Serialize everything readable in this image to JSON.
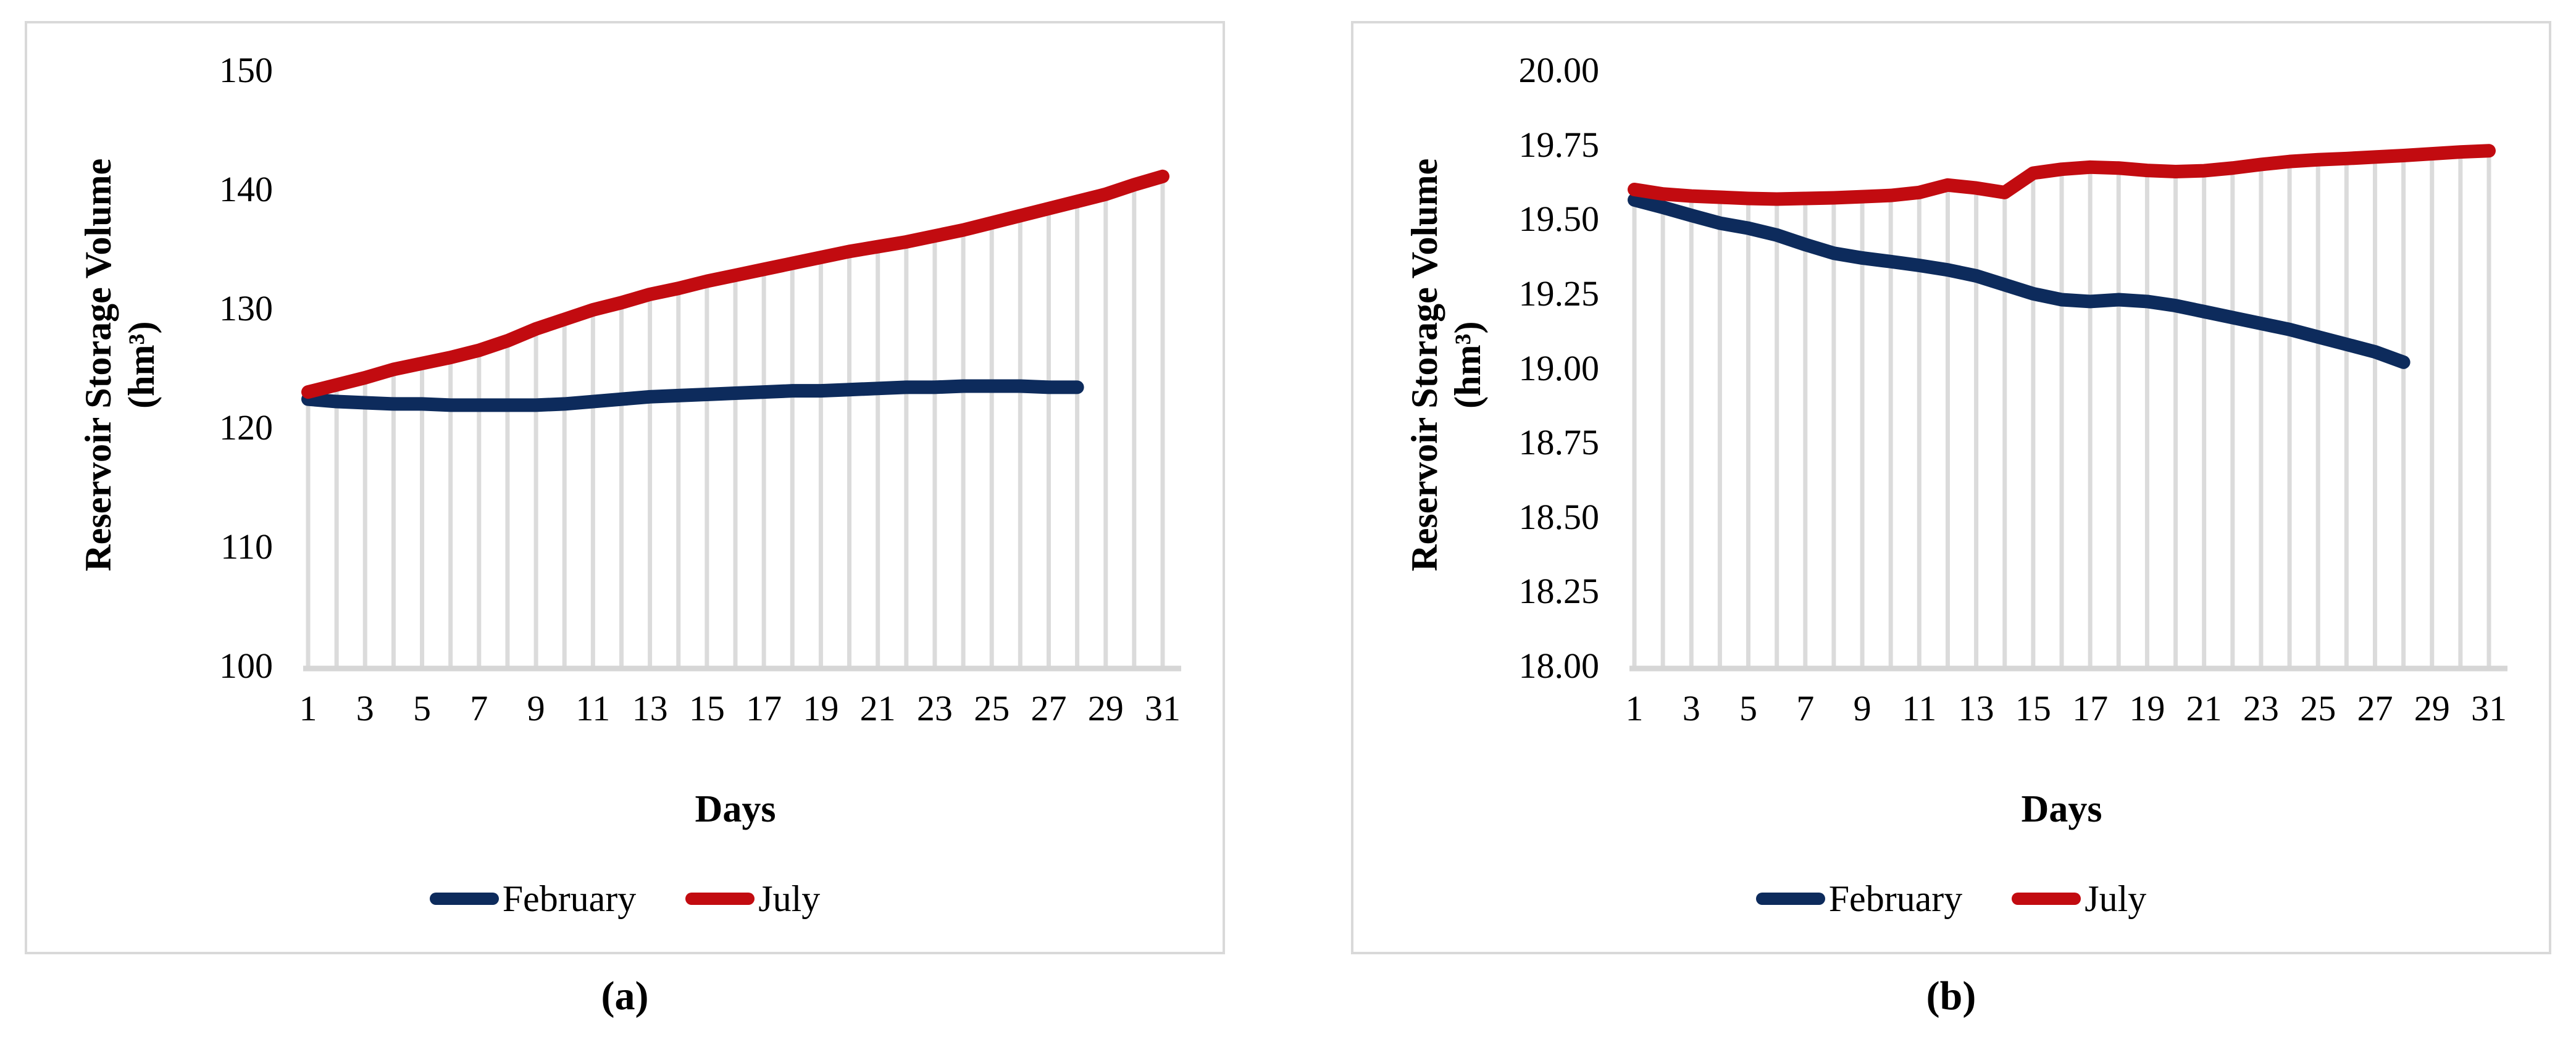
{
  "colors": {
    "february_line": "#0d2b5c",
    "july_line": "#c20b10",
    "drop_line": "#dbdbdb",
    "axis_line": "#d6d6d6",
    "panel_border": "#d9d9d9"
  },
  "chart_data": [
    {
      "type": "line",
      "caption": "(a)",
      "xlabel": "Days",
      "ylabel_line1": "Reservoir Storage Volume",
      "ylabel_line2": "(hm³)",
      "x": [
        1,
        2,
        3,
        4,
        5,
        6,
        7,
        8,
        9,
        10,
        11,
        12,
        13,
        14,
        15,
        16,
        17,
        18,
        19,
        20,
        21,
        22,
        23,
        24,
        25,
        26,
        27,
        28,
        29,
        30,
        31
      ],
      "xtick_labels": [
        "1",
        "3",
        "5",
        "7",
        "9",
        "11",
        "13",
        "15",
        "17",
        "19",
        "21",
        "23",
        "25",
        "27",
        "29",
        "31"
      ],
      "ylim": [
        100,
        150
      ],
      "ytick_values": [
        150,
        140,
        130,
        120,
        110,
        100
      ],
      "ytick_labels": [
        "150",
        "140",
        "130",
        "120",
        "110",
        "100"
      ],
      "grid": "vertical-drop-lines",
      "legend_position": "bottom",
      "series": [
        {
          "name": "February",
          "color": "#0d2b5c",
          "values": [
            122.4,
            122.2,
            122.1,
            122.0,
            122.0,
            121.9,
            121.9,
            121.9,
            121.9,
            122.0,
            122.2,
            122.4,
            122.6,
            122.7,
            122.8,
            122.9,
            123.0,
            123.1,
            123.1,
            123.2,
            123.3,
            123.4,
            123.4,
            123.5,
            123.5,
            123.5,
            123.4,
            123.4
          ]
        },
        {
          "name": "July",
          "color": "#c20b10",
          "values": [
            123.0,
            123.6,
            124.2,
            124.9,
            125.4,
            125.9,
            126.5,
            127.3,
            128.3,
            129.1,
            129.9,
            130.5,
            131.2,
            131.7,
            132.3,
            132.8,
            133.3,
            133.8,
            134.3,
            134.8,
            135.2,
            135.6,
            136.1,
            136.6,
            137.2,
            137.8,
            138.4,
            139.0,
            139.6,
            140.4,
            141.1
          ]
        }
      ]
    },
    {
      "type": "line",
      "caption": "(b)",
      "xlabel": "Days",
      "ylabel_line1": "Reservoir Storage Volume",
      "ylabel_line2": "(hm³)",
      "x": [
        1,
        2,
        3,
        4,
        5,
        6,
        7,
        8,
        9,
        10,
        11,
        12,
        13,
        14,
        15,
        16,
        17,
        18,
        19,
        20,
        21,
        22,
        23,
        24,
        25,
        26,
        27,
        28,
        29,
        30,
        31
      ],
      "xtick_labels": [
        "1",
        "3",
        "5",
        "7",
        "9",
        "11",
        "13",
        "15",
        "17",
        "19",
        "21",
        "23",
        "25",
        "27",
        "29",
        "31"
      ],
      "ylim": [
        18.0,
        20.0
      ],
      "ytick_values": [
        20.0,
        19.75,
        19.5,
        19.25,
        19.0,
        18.75,
        18.5,
        18.25,
        18.0
      ],
      "ytick_labels": [
        "20.00",
        "19.75",
        "19.50",
        "19.25",
        "19.00",
        "18.75",
        "18.50",
        "18.25",
        "18.00"
      ],
      "grid": "vertical-drop-lines",
      "legend_position": "bottom",
      "series": [
        {
          "name": "February",
          "color": "#0d2b5c",
          "values": [
            19.565,
            19.54,
            19.513,
            19.487,
            19.47,
            19.447,
            19.415,
            19.386,
            19.37,
            19.358,
            19.345,
            19.33,
            19.31,
            19.28,
            19.25,
            19.23,
            19.224,
            19.23,
            19.224,
            19.21,
            19.19,
            19.17,
            19.15,
            19.13,
            19.105,
            19.08,
            19.055,
            19.02
          ]
        },
        {
          "name": "July",
          "color": "#c20b10",
          "values": [
            19.6,
            19.585,
            19.578,
            19.574,
            19.57,
            19.568,
            19.57,
            19.572,
            19.576,
            19.58,
            19.59,
            19.615,
            19.605,
            19.59,
            19.655,
            19.668,
            19.675,
            19.672,
            19.664,
            19.66,
            19.663,
            19.672,
            19.684,
            19.694,
            19.7,
            19.704,
            19.709,
            19.714,
            19.72,
            19.726,
            19.73
          ]
        }
      ]
    }
  ]
}
